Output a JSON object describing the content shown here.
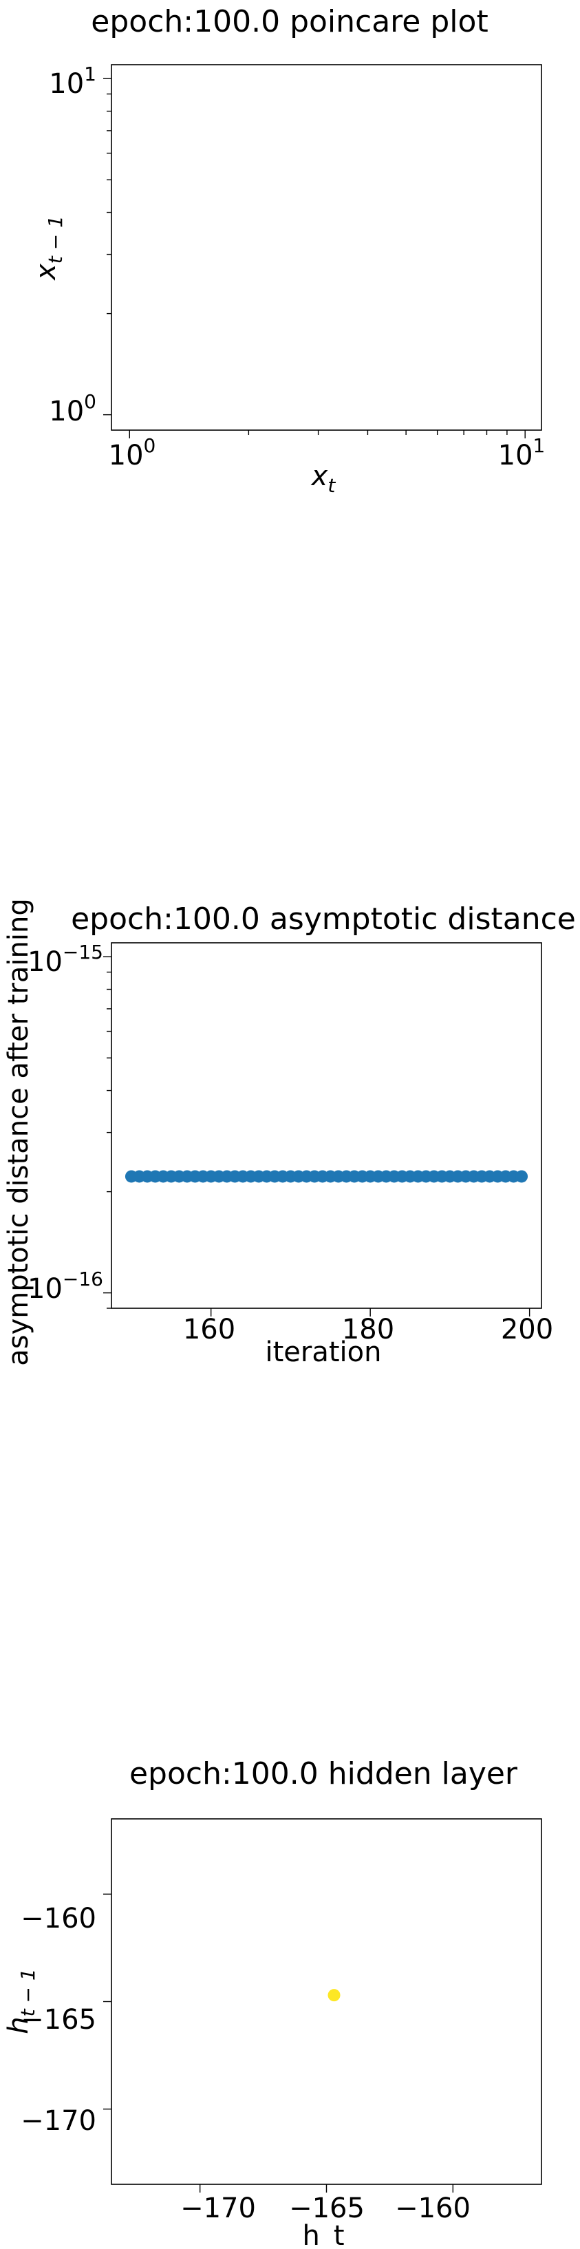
{
  "chart_data": [
    {
      "type": "scatter",
      "title": "epoch:100.0 poincare plot",
      "xlabel": "x",
      "xlabel_sub": "t",
      "ylabel": "x",
      "ylabel_sub": "t − 1",
      "xscale": "log",
      "yscale": "log",
      "xlim": [
        0.9,
        11
      ],
      "ylim": [
        0.9,
        11
      ],
      "xticks": [
        {
          "base": "10",
          "exp": "0"
        },
        {
          "base": "10",
          "exp": "1"
        }
      ],
      "yticks": [
        {
          "base": "10",
          "exp": "0"
        },
        {
          "base": "10",
          "exp": "1"
        }
      ],
      "x": [],
      "y": [],
      "grid": false
    },
    {
      "type": "scatter",
      "title": "epoch:100.0 asymptotic distance",
      "xlabel": "iteration",
      "ylabel": "asymptotic distance after training",
      "xscale": "linear",
      "yscale": "log",
      "xlim": [
        147.5,
        201.5
      ],
      "ylim": [
        9e-17,
        1.1e-15
      ],
      "xticks": [
        "160",
        "180",
        "200"
      ],
      "yticks": [
        {
          "base": "10",
          "exp": "−16"
        },
        {
          "base": "10",
          "exp": "−15"
        }
      ],
      "x": [
        150,
        151,
        152,
        153,
        154,
        155,
        156,
        157,
        158,
        159,
        160,
        161,
        162,
        163,
        164,
        165,
        166,
        167,
        168,
        169,
        170,
        171,
        172,
        173,
        174,
        175,
        176,
        177,
        178,
        179,
        180,
        181,
        182,
        183,
        184,
        185,
        186,
        187,
        188,
        189,
        190,
        191,
        192,
        193,
        194,
        195,
        196,
        197,
        198,
        199
      ],
      "y_constant": 2.22e-16,
      "color": "#1f77b4",
      "grid": false
    },
    {
      "type": "scatter",
      "title": "epoch:100.0 hidden layer",
      "xlabel": "h_t",
      "ylabel": "h",
      "ylabel_sub": "t − 1",
      "xscale": "linear",
      "yscale": "linear",
      "xlim": [
        -173.5,
        -156.5
      ],
      "ylim": [
        -173.5,
        -156.5
      ],
      "xticks": [
        "−170",
        "−165",
        "−160"
      ],
      "yticks": [
        "−170",
        "−165",
        "−160"
      ],
      "x": [
        -164.7
      ],
      "y": [
        -164.7
      ],
      "color": "#fde725",
      "grid": false
    }
  ]
}
